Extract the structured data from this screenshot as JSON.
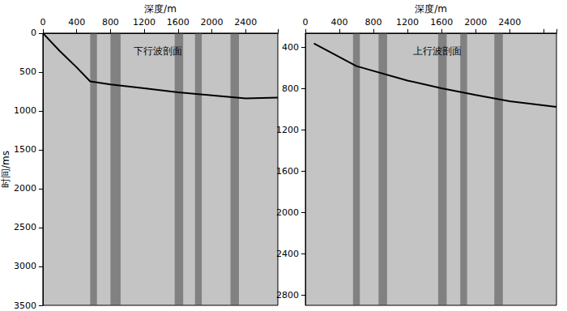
{
  "chart_data": [
    {
      "type": "line",
      "title": "下行波剖面",
      "x_label": "深度/m",
      "y_label": "时间/ms",
      "xlim": [
        0,
        2780
      ],
      "xticks": [
        0,
        400,
        800,
        1200,
        1600,
        2000,
        2400
      ],
      "ylim": [
        0,
        3500
      ],
      "yticks": [
        0,
        500,
        1000,
        1500,
        2000,
        2500,
        3000,
        3500
      ],
      "x": [
        0,
        200,
        400,
        560,
        800,
        1200,
        1600,
        2000,
        2400,
        2780
      ],
      "values": [
        0,
        230,
        440,
        620,
        660,
        710,
        760,
        800,
        840,
        830
      ],
      "color": "#000000",
      "bands": [
        [
          560,
          640
        ],
        [
          800,
          920
        ],
        [
          1560,
          1660
        ],
        [
          1800,
          1880
        ],
        [
          2220,
          2320
        ]
      ],
      "grid": false
    },
    {
      "type": "line",
      "title": "上行波剖面",
      "x_label": "深度/m",
      "xlim": [
        0,
        2950
      ],
      "xticks": [
        0,
        400,
        800,
        1200,
        1600,
        2000,
        2400
      ],
      "ylim": [
        260,
        2900
      ],
      "yticks": [
        400,
        800,
        1200,
        1600,
        2000,
        2400,
        2800
      ],
      "x": [
        100,
        600,
        1200,
        1600,
        2000,
        2400,
        2950
      ],
      "values": [
        360,
        580,
        720,
        795,
        860,
        920,
        975
      ],
      "color": "#000000",
      "bands": [
        [
          560,
          640
        ],
        [
          860,
          960
        ],
        [
          1560,
          1660
        ],
        [
          1820,
          1900
        ],
        [
          2220,
          2320
        ]
      ],
      "grid": false
    }
  ]
}
